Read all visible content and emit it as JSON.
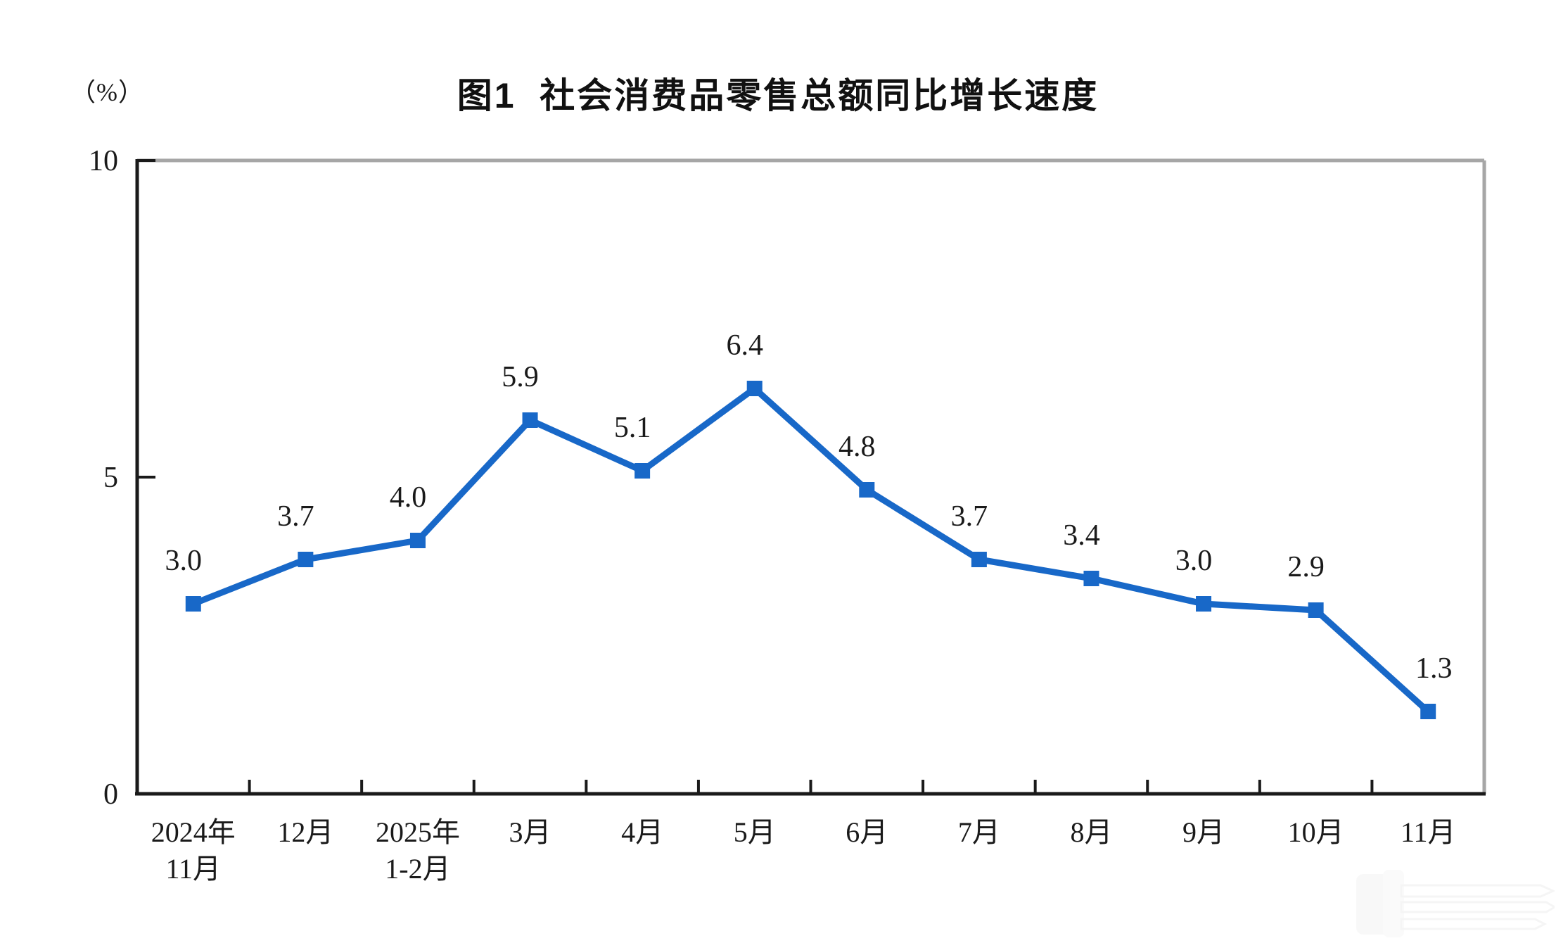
{
  "chart_data": {
    "type": "line",
    "title": "图1  社会消费品零售总额同比增长速度",
    "ylabel": "（%）",
    "xlabel": "",
    "ylim": [
      0,
      10
    ],
    "yticks": [
      0,
      5,
      10
    ],
    "grid": false,
    "legend": false,
    "categories": [
      {
        "line1": "2024年",
        "line2": "11月"
      },
      {
        "line1": "12月",
        "line2": ""
      },
      {
        "line1": "2025年",
        "line2": "1-2月"
      },
      {
        "line1": "3月",
        "line2": ""
      },
      {
        "line1": "4月",
        "line2": ""
      },
      {
        "line1": "5月",
        "line2": ""
      },
      {
        "line1": "6月",
        "line2": ""
      },
      {
        "line1": "7月",
        "line2": ""
      },
      {
        "line1": "8月",
        "line2": ""
      },
      {
        "line1": "9月",
        "line2": ""
      },
      {
        "line1": "10月",
        "line2": ""
      },
      {
        "line1": "11月",
        "line2": ""
      }
    ],
    "values": [
      3.0,
      3.7,
      4.0,
      5.9,
      5.1,
      6.4,
      4.8,
      3.7,
      3.4,
      3.0,
      2.9,
      1.3
    ],
    "data_labels": [
      "3.0",
      "3.7",
      "4.0",
      "5.9",
      "5.1",
      "6.4",
      "4.8",
      "3.7",
      "3.4",
      "3.0",
      "2.9",
      "1.3"
    ],
    "line_color": "#1868c8",
    "axis_color": "#1a1a1a",
    "border_gray": "#a6a6a6",
    "text_color": "#1a1a1a"
  }
}
